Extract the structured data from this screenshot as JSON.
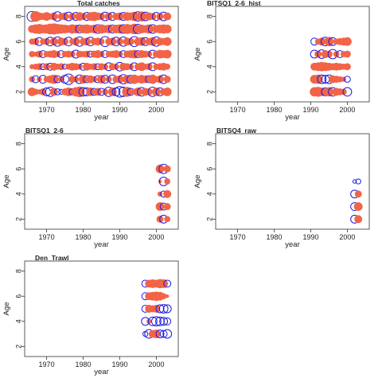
{
  "colors": {
    "positive": "#F26347",
    "negative": "#1A1AE6",
    "frame": "#333333",
    "text": "#222222"
  },
  "chart_data": [
    {
      "type": "scatter",
      "title": "Total catches",
      "xlabel": "year",
      "ylabel": "Age",
      "xlim": [
        1964,
        2006
      ],
      "ylim": [
        1.2,
        8.8
      ],
      "xticks": [
        1970,
        1980,
        1990,
        2000
      ],
      "yticks": [
        2,
        4,
        6,
        8
      ],
      "x": [
        1966,
        1967,
        1968,
        1969,
        1970,
        1971,
        1972,
        1973,
        1974,
        1975,
        1976,
        1977,
        1978,
        1979,
        1980,
        1981,
        1982,
        1983,
        1984,
        1985,
        1986,
        1987,
        1988,
        1989,
        1990,
        1991,
        1992,
        1993,
        1994,
        1995,
        1996,
        1997,
        1998,
        1999,
        2000,
        2001,
        2002,
        2003
      ],
      "ages": [
        2,
        3,
        4,
        5,
        6,
        7,
        8
      ],
      "note_sign": "red = positive residual, blue = negative residual",
      "residuals": [
        [
          0.6,
          0.3,
          0.2,
          0.4,
          -0.5,
          -0.7,
          0.5,
          -0.3,
          -0.2,
          0.4,
          0.6,
          -0.3,
          0.7,
          0.9,
          -0.6,
          -0.5,
          0.6,
          -0.4,
          0.5,
          -0.4,
          0.3,
          -0.7,
          0.6,
          -0.5,
          -0.9,
          -0.7,
          0.8,
          -0.4,
          0.3,
          0.6,
          -0.6,
          0.5,
          0.4,
          -0.7,
          0.6,
          -0.5,
          0.4,
          0.6
        ],
        [
          0.3,
          -0.4,
          0.2,
          -0.5,
          0.3,
          0.5,
          0.7,
          -0.4,
          0.3,
          -0.5,
          -0.9,
          0.4,
          0.3,
          -0.6,
          0.6,
          -0.4,
          0.5,
          0.3,
          -0.4,
          0.6,
          -0.5,
          0.3,
          -0.6,
          0.4,
          0.5,
          -0.7,
          0.6,
          -0.5,
          0.7,
          0.4,
          0.6,
          0.5,
          -0.4,
          0.7,
          0.3,
          0.5,
          -0.6,
          0.4
        ],
        [
          0.2,
          0.3,
          0.4,
          -0.3,
          0.4,
          -0.4,
          0.5,
          0.3,
          0.4,
          -0.2,
          0.3,
          0.5,
          0.4,
          0.3,
          -0.4,
          0.5,
          0.3,
          0.4,
          -0.3,
          0.4,
          0.3,
          -0.5,
          0.4,
          0.3,
          -0.6,
          0.5,
          0.4,
          0.3,
          -0.5,
          0.4,
          0.6,
          0.3,
          0.4,
          -0.5,
          0.3,
          0.4,
          0.5,
          0.3
        ],
        [
          0.3,
          0.2,
          0.4,
          -0.4,
          0.3,
          0.4,
          0.5,
          0.3,
          -0.4,
          0.3,
          0.4,
          0.3,
          -0.5,
          0.4,
          0.3,
          0.4,
          -0.3,
          0.4,
          0.5,
          0.3,
          -0.4,
          0.3,
          0.4,
          0.5,
          0.3,
          -0.4,
          0.4,
          0.5,
          0.6,
          -0.4,
          0.5,
          0.4,
          0.3,
          -0.5,
          0.4,
          0.6,
          0.5,
          0.6
        ],
        [
          0.3,
          0.4,
          -0.5,
          0.3,
          0.4,
          -0.6,
          0.5,
          -0.7,
          0.5,
          0.4,
          -0.6,
          0.3,
          0.5,
          -0.7,
          0.4,
          0.5,
          -0.6,
          0.4,
          0.5,
          0.3,
          -0.8,
          0.4,
          0.5,
          -0.6,
          0.4,
          -0.7,
          0.5,
          0.4,
          -0.8,
          0.5,
          0.6,
          -0.5,
          0.4,
          0.6,
          -0.7,
          0.5,
          0.4,
          0.6
        ],
        [
          0.5,
          0.7,
          0.8,
          0.6,
          0.7,
          0.9,
          1.0,
          0.8,
          0.7,
          0.6,
          0.5,
          0.7,
          0.6,
          -0.5,
          0.6,
          0.7,
          0.5,
          0.6,
          -0.6,
          0.7,
          0.5,
          0.6,
          -0.5,
          0.6,
          0.7,
          -0.6,
          0.8,
          0.6,
          0.9,
          -0.7,
          0.6,
          0.5,
          0.7,
          -0.6,
          0.5,
          0.6,
          0.7,
          0.6
        ],
        [
          -0.8,
          0.9,
          0.5,
          0.4,
          0.6,
          0.3,
          0.5,
          -0.7,
          0.4,
          0.5,
          -0.6,
          0.4,
          -0.5,
          0.6,
          0.4,
          -0.5,
          0.6,
          0.7,
          0.5,
          0.4,
          -0.6,
          0.5,
          -0.5,
          0.4,
          0.5,
          -0.5,
          0.6,
          0.5,
          0.7,
          -0.7,
          0.8,
          -0.6,
          0.5,
          0.4,
          -0.5,
          0.4,
          -0.6,
          0.5
        ]
      ]
    },
    {
      "type": "scatter",
      "title": "BITSQ1_2-6_hist",
      "xlabel": "year",
      "ylabel": "Age",
      "xlim": [
        1964,
        2006
      ],
      "ylim": [
        1.2,
        8.8
      ],
      "xticks": [
        1970,
        1980,
        1990,
        2000
      ],
      "yticks": [
        2,
        4,
        6,
        8
      ],
      "x": [
        1991,
        1992,
        1993,
        1994,
        1995,
        1996,
        1997,
        1998,
        1999,
        2000
      ],
      "ages": [
        2,
        3,
        4,
        5,
        6
      ],
      "residuals": [
        [
          0.7,
          0.8,
          0.6,
          -0.5,
          0.7,
          -0.6,
          0.5,
          0.4,
          0.3,
          -0.6
        ],
        [
          0.6,
          0.7,
          -0.6,
          -0.5,
          -0.6,
          0.5,
          0.4,
          0.3,
          0.2,
          -0.3
        ],
        [
          0.5,
          0.6,
          0.7,
          0.6,
          0.5,
          0.4,
          0.5,
          0.4,
          0.3,
          0.4
        ],
        [
          -0.5,
          0.4,
          -0.6,
          0.5,
          0.4,
          -0.7,
          0.3,
          -0.4,
          0.3,
          0.4
        ],
        [
          -0.4,
          0.3,
          0.5,
          -0.6,
          0.7,
          -0.5,
          0.3,
          0.4,
          0.5,
          0.6
        ]
      ]
    },
    {
      "type": "scatter",
      "title": "BITSQ1_2-6",
      "xlabel": "year",
      "ylabel": "Age",
      "xlim": [
        1964,
        2006
      ],
      "ylim": [
        1.2,
        8.8
      ],
      "xticks": [
        1970,
        1980,
        1990,
        2000
      ],
      "yticks": [
        2,
        4,
        6,
        8
      ],
      "x": [
        2001,
        2002,
        2003
      ],
      "ages": [
        2,
        3,
        4,
        5,
        6
      ],
      "residuals": [
        [
          0.4,
          -0.5,
          0.3
        ],
        [
          0.6,
          -0.4,
          0.4
        ],
        [
          0.2,
          -0.3,
          0.5
        ],
        [
          0.1,
          -0.6,
          0.3
        ],
        [
          0.6,
          -0.7,
          0.4
        ]
      ]
    },
    {
      "type": "scatter",
      "title": "BITSQ4_raw",
      "xlabel": "year",
      "ylabel": "Age",
      "xlim": [
        1964,
        2006
      ],
      "ylim": [
        1.2,
        8.8
      ],
      "xticks": [
        1970,
        1980,
        1990,
        2000
      ],
      "yticks": [
        2,
        4,
        6,
        8
      ],
      "x": [
        2002,
        2003
      ],
      "ages": [
        2,
        3,
        4,
        5
      ],
      "residuals": [
        [
          -0.5,
          0.5
        ],
        [
          -0.5,
          0.6
        ],
        [
          -0.5,
          0.4
        ],
        [
          -0.1,
          -0.2
        ]
      ]
    },
    {
      "type": "scatter",
      "title": "Den_Trawl",
      "xlabel": "year",
      "ylabel": "Age",
      "xlim": [
        1964,
        2006
      ],
      "ylim": [
        1.2,
        8.8
      ],
      "xticks": [
        1970,
        1980,
        1990,
        2000
      ],
      "yticks": [
        2,
        4,
        6,
        8
      ],
      "x": [
        1997,
        1998,
        1999,
        2000,
        2001,
        2002,
        2003
      ],
      "ages": [
        3,
        4,
        5,
        6,
        7
      ],
      "residuals": [
        [
          -0.2,
          -0.6,
          0.5,
          0.6,
          -0.5,
          -0.4,
          -0.6
        ],
        [
          -0.5,
          0.2,
          -0.6,
          -0.7,
          -0.6,
          -0.5,
          -0.4
        ],
        [
          -0.4,
          0.5,
          0.4,
          0.5,
          -0.5,
          -0.6,
          -0.5
        ],
        [
          -0.4,
          0.5,
          0.6,
          0.7,
          0.6,
          0.3,
          0.1
        ],
        [
          -0.4,
          0.5,
          0.6,
          0.5,
          0.7,
          0.6,
          -0.4
        ]
      ]
    }
  ]
}
